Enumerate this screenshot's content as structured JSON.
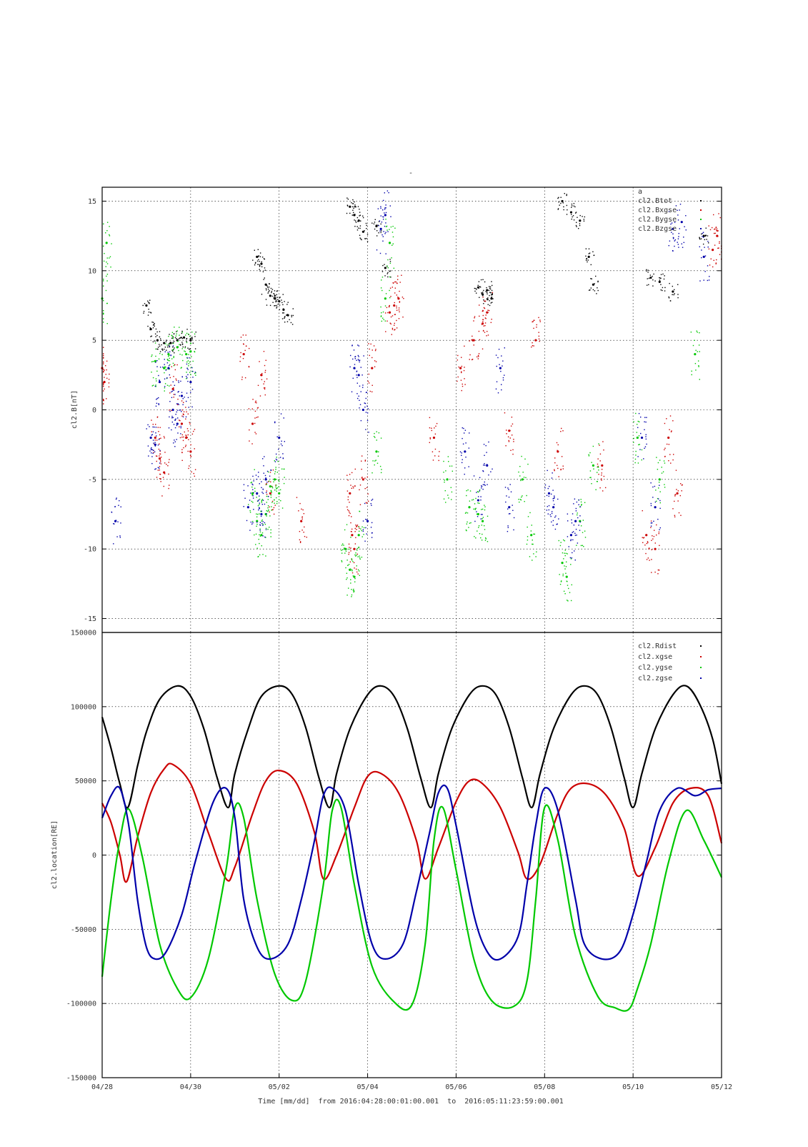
{
  "page_title": "-",
  "colors": {
    "total": "#000000",
    "x": "#cc0000",
    "y": "#00c800",
    "z": "#0000aa"
  },
  "chart_data": [
    {
      "type": "scatter",
      "title": "",
      "ylabel": "cl2.B[nT]",
      "xlabel": "",
      "xlim": [
        0,
        14
      ],
      "ylim": [
        -16,
        16
      ],
      "yticks": [
        15,
        10,
        5,
        0,
        -5,
        -10,
        -15
      ],
      "ytick_labels": [
        "15",
        "10",
        "5",
        "0",
        "-5",
        "-10",
        "-15"
      ],
      "grid": true,
      "legend_placement": "top-right",
      "legend": [
        "a",
        "cl2.Btot",
        "cl2.Bxgse",
        "cl2.Bygse",
        "cl2.Bzgse"
      ],
      "series": [
        {
          "name": "cl2.Btot",
          "color": "#000000",
          "points": [
            [
              1.0,
              7.5
            ],
            [
              1.1,
              5.8
            ],
            [
              1.25,
              5.0
            ],
            [
              1.4,
              4.8
            ],
            [
              1.55,
              4.8
            ],
            [
              1.7,
              5.0
            ],
            [
              1.85,
              5.2
            ],
            [
              2.0,
              5.0
            ],
            [
              3.5,
              11.0
            ],
            [
              3.6,
              10.5
            ],
            [
              3.7,
              9.0
            ],
            [
              3.8,
              8.2
            ],
            [
              3.9,
              8.0
            ],
            [
              4.0,
              7.8
            ],
            [
              4.1,
              7.2
            ],
            [
              4.2,
              6.8
            ],
            [
              5.6,
              14.6
            ],
            [
              5.7,
              14.0
            ],
            [
              5.8,
              13.6
            ],
            [
              5.9,
              12.8
            ],
            [
              6.2,
              13.2
            ],
            [
              6.4,
              10.2
            ],
            [
              8.5,
              8.8
            ],
            [
              8.6,
              8.3
            ],
            [
              8.7,
              8.6
            ],
            [
              8.8,
              8.0
            ],
            [
              10.4,
              15.0
            ],
            [
              10.6,
              14.2
            ],
            [
              10.8,
              13.6
            ],
            [
              11.0,
              11.0
            ],
            [
              11.1,
              9.0
            ],
            [
              12.4,
              9.5
            ],
            [
              12.6,
              9.2
            ],
            [
              12.9,
              8.5
            ],
            [
              13.6,
              12.5
            ]
          ]
        },
        {
          "name": "cl2.Bxgse",
          "color": "#cc0000",
          "points": [
            [
              0.0,
              3.0
            ],
            [
              0.05,
              2.0
            ],
            [
              1.2,
              -2.0
            ],
            [
              1.3,
              -3.5
            ],
            [
              1.4,
              -4.5
            ],
            [
              1.6,
              1.5
            ],
            [
              1.8,
              -1.0
            ],
            [
              1.9,
              -2.0
            ],
            [
              2.0,
              -3.0
            ],
            [
              3.2,
              4.0
            ],
            [
              3.4,
              -1.0
            ],
            [
              3.6,
              2.5
            ],
            [
              3.8,
              -6.0
            ],
            [
              4.5,
              -8.0
            ],
            [
              5.6,
              -6.0
            ],
            [
              5.65,
              -9.0
            ],
            [
              5.7,
              -10.0
            ],
            [
              5.9,
              -5.0
            ],
            [
              6.1,
              3.0
            ],
            [
              6.5,
              7.0
            ],
            [
              6.6,
              7.5
            ],
            [
              6.7,
              8.0
            ],
            [
              7.5,
              -2.0
            ],
            [
              8.1,
              3.0
            ],
            [
              8.4,
              5.0
            ],
            [
              8.6,
              6.2
            ],
            [
              8.7,
              7.0
            ],
            [
              9.2,
              -1.5
            ],
            [
              9.8,
              5.0
            ],
            [
              10.3,
              -3.0
            ],
            [
              11.3,
              -4.0
            ],
            [
              12.3,
              -9.0
            ],
            [
              12.5,
              -10.0
            ],
            [
              12.8,
              -2.0
            ],
            [
              13.0,
              -6.0
            ],
            [
              13.8,
              11.5
            ],
            [
              13.9,
              12.5
            ]
          ]
        },
        {
          "name": "cl2.Bygse",
          "color": "#00c800",
          "points": [
            [
              0.0,
              8.0
            ],
            [
              0.1,
              12.0
            ],
            [
              1.2,
              3.5
            ],
            [
              1.4,
              3.0
            ],
            [
              1.5,
              4.0
            ],
            [
              1.7,
              4.5
            ],
            [
              1.9,
              4.0
            ],
            [
              2.0,
              4.2
            ],
            [
              3.4,
              -6.0
            ],
            [
              3.5,
              -8.0
            ],
            [
              3.6,
              -9.0
            ],
            [
              3.7,
              -7.5
            ],
            [
              3.8,
              -5.5
            ],
            [
              3.9,
              -5.0
            ],
            [
              4.0,
              -6.0
            ],
            [
              5.5,
              -10.0
            ],
            [
              5.6,
              -11.5
            ],
            [
              5.7,
              -12.0
            ],
            [
              5.8,
              -9.0
            ],
            [
              6.2,
              -3.0
            ],
            [
              6.4,
              8.0
            ],
            [
              6.5,
              12.0
            ],
            [
              7.8,
              -5.0
            ],
            [
              8.3,
              -7.0
            ],
            [
              8.5,
              -7.5
            ],
            [
              8.6,
              -8.0
            ],
            [
              9.5,
              -5.0
            ],
            [
              9.7,
              -9.0
            ],
            [
              10.4,
              -11.0
            ],
            [
              10.5,
              -12.0
            ],
            [
              10.8,
              -8.0
            ],
            [
              11.1,
              -4.0
            ],
            [
              12.1,
              -2.0
            ],
            [
              12.6,
              -5.0
            ],
            [
              13.4,
              4.0
            ]
          ]
        },
        {
          "name": "cl2.Bzgse",
          "color": "#0000aa",
          "points": [
            [
              0.3,
              -8.0
            ],
            [
              1.1,
              -2.0
            ],
            [
              1.2,
              -2.5
            ],
            [
              1.3,
              2.0
            ],
            [
              1.5,
              3.0
            ],
            [
              1.6,
              0.0
            ],
            [
              1.7,
              -1.0
            ],
            [
              1.8,
              1.0
            ],
            [
              2.0,
              2.0
            ],
            [
              3.3,
              -7.0
            ],
            [
              3.5,
              -6.0
            ],
            [
              3.6,
              -7.5
            ],
            [
              3.7,
              -5.0
            ],
            [
              4.0,
              -2.0
            ],
            [
              5.7,
              3.0
            ],
            [
              5.8,
              2.5
            ],
            [
              5.9,
              0.0
            ],
            [
              6.0,
              -8.0
            ],
            [
              6.3,
              13.0
            ],
            [
              6.4,
              14.0
            ],
            [
              8.2,
              -3.0
            ],
            [
              8.5,
              -6.5
            ],
            [
              8.7,
              -4.0
            ],
            [
              9.0,
              3.0
            ],
            [
              9.2,
              -7.0
            ],
            [
              10.1,
              -6.0
            ],
            [
              10.2,
              -7.0
            ],
            [
              10.6,
              -9.0
            ],
            [
              10.7,
              -8.0
            ],
            [
              12.2,
              -2.0
            ],
            [
              12.5,
              -7.0
            ],
            [
              12.9,
              13.0
            ],
            [
              13.1,
              13.5
            ],
            [
              13.6,
              11.0
            ]
          ]
        }
      ]
    },
    {
      "type": "line",
      "title": "",
      "ylabel": "cl2.location[RE]",
      "xlabel": "Time [mm/dd]  from 2016:04:28:00:01:00.001  to  2016:05:11:23:59:00.001",
      "xlim": [
        0,
        14
      ],
      "xticks": [
        0,
        2,
        4,
        6,
        8,
        10,
        12,
        14
      ],
      "xtick_labels": [
        "04/28",
        "04/30",
        "05/02",
        "05/04",
        "05/06",
        "05/08",
        "05/10",
        "05/12"
      ],
      "ylim": [
        -150000,
        150000
      ],
      "yticks": [
        150000,
        100000,
        50000,
        0,
        -50000,
        -100000,
        -150000
      ],
      "ytick_labels": [
        "150000",
        "100000",
        "50000",
        "0",
        "-50000",
        "-100000",
        "-150000"
      ],
      "grid": true,
      "legend_placement": "top-right",
      "legend": [
        "cl2.Rdist",
        "cl2.xgse",
        "cl2.ygse",
        "cl2.zgse"
      ],
      "period_days": 2.283,
      "series": [
        {
          "name": "cl2.Rdist",
          "color": "#000000",
          "x": [
            0.0,
            0.2,
            0.4,
            0.58,
            0.8,
            1.0,
            1.3,
            1.7,
            2.0,
            2.3,
            2.6,
            2.85,
            3.0,
            3.3,
            3.6,
            4.0,
            4.3,
            4.6,
            4.9,
            5.14,
            5.3,
            5.6,
            6.0,
            6.3,
            6.6,
            6.9,
            7.2,
            7.43,
            7.6,
            7.9,
            8.3,
            8.6,
            8.9,
            9.2,
            9.5,
            9.71,
            9.9,
            10.2,
            10.6,
            10.9,
            11.2,
            11.5,
            11.8,
            12.0,
            12.2,
            12.5,
            12.9,
            13.2,
            13.5,
            13.8,
            14.0
          ],
          "values": [
            93000,
            72000,
            48000,
            32000,
            60000,
            83000,
            105000,
            114000,
            107000,
            85000,
            52000,
            32000,
            55000,
            85000,
            107000,
            114000,
            108000,
            86000,
            52000,
            32000,
            55000,
            85000,
            108000,
            114000,
            107000,
            85000,
            52000,
            32000,
            55000,
            85000,
            108000,
            114000,
            108000,
            86000,
            52000,
            32000,
            55000,
            85000,
            108000,
            114000,
            108000,
            86000,
            52000,
            32000,
            55000,
            85000,
            108000,
            114000,
            102000,
            78000,
            48000
          ]
        },
        {
          "name": "cl2.xgse",
          "color": "#cc0000",
          "x": [
            0.0,
            0.2,
            0.4,
            0.55,
            0.8,
            1.1,
            1.4,
            1.6,
            2.0,
            2.4,
            2.8,
            3.0,
            3.4,
            3.7,
            4.0,
            4.4,
            4.8,
            5.0,
            5.3,
            5.7,
            6.0,
            6.3,
            6.7,
            7.1,
            7.3,
            7.6,
            8.0,
            8.3,
            8.6,
            9.0,
            9.4,
            9.6,
            9.9,
            10.3,
            10.6,
            11.0,
            11.4,
            11.8,
            12.1,
            12.5,
            12.9,
            13.3,
            13.7,
            14.0
          ],
          "values": [
            35000,
            22000,
            0,
            -18000,
            12000,
            42000,
            58000,
            61000,
            48000,
            15000,
            -16000,
            -8000,
            28000,
            50000,
            57000,
            48000,
            15000,
            -16000,
            0,
            32000,
            53000,
            55000,
            42000,
            10000,
            -16000,
            5000,
            36000,
            50000,
            48000,
            32000,
            2000,
            -16000,
            -6000,
            28000,
            45000,
            48000,
            40000,
            18000,
            -14000,
            5000,
            35000,
            45000,
            40000,
            8000
          ]
        },
        {
          "name": "cl2.ygse",
          "color": "#00c800",
          "x": [
            0.0,
            0.2,
            0.4,
            0.6,
            0.9,
            1.3,
            1.7,
            2.0,
            2.4,
            2.8,
            3.0,
            3.2,
            3.5,
            3.9,
            4.3,
            4.6,
            5.0,
            5.2,
            5.4,
            5.7,
            6.1,
            6.6,
            7.0,
            7.3,
            7.5,
            7.7,
            8.0,
            8.4,
            8.8,
            9.3,
            9.6,
            9.8,
            10.0,
            10.3,
            10.7,
            11.2,
            11.6,
            11.9,
            12.1,
            12.4,
            12.8,
            13.2,
            13.6,
            14.0
          ],
          "values": [
            -82000,
            -30000,
            10000,
            31000,
            0,
            -60000,
            -90000,
            -96000,
            -70000,
            -10000,
            32000,
            25000,
            -30000,
            -80000,
            -98000,
            -85000,
            -20000,
            30000,
            32000,
            -20000,
            -75000,
            -99000,
            -101000,
            -60000,
            10000,
            32000,
            -10000,
            -70000,
            -98000,
            -102000,
            -85000,
            -30000,
            32000,
            10000,
            -55000,
            -95000,
            -103000,
            -104000,
            -90000,
            -60000,
            -5000,
            30000,
            10000,
            -15000
          ]
        },
        {
          "name": "cl2.zgse",
          "color": "#0000aa",
          "x": [
            0.0,
            0.2,
            0.4,
            0.6,
            0.8,
            1.0,
            1.2,
            1.45,
            1.8,
            2.1,
            2.5,
            2.8,
            3.0,
            3.2,
            3.5,
            3.8,
            4.2,
            4.5,
            4.8,
            5.0,
            5.2,
            5.5,
            5.8,
            6.1,
            6.4,
            6.8,
            7.1,
            7.4,
            7.6,
            7.8,
            8.0,
            8.4,
            8.7,
            9.0,
            9.4,
            9.6,
            9.8,
            10.0,
            10.3,
            10.7,
            10.9,
            11.3,
            11.7,
            12.0,
            12.3,
            12.6,
            13.0,
            13.4,
            13.7,
            14.0
          ],
          "values": [
            25000,
            40000,
            45000,
            20000,
            -30000,
            -62000,
            -70000,
            -65000,
            -40000,
            -5000,
            35000,
            45000,
            25000,
            -30000,
            -62000,
            -70000,
            -60000,
            -30000,
            10000,
            40000,
            45000,
            30000,
            -20000,
            -60000,
            -70000,
            -60000,
            -25000,
            15000,
            42000,
            45000,
            20000,
            -40000,
            -65000,
            -70000,
            -55000,
            -20000,
            20000,
            45000,
            30000,
            -30000,
            -60000,
            -70000,
            -65000,
            -40000,
            -5000,
            30000,
            45000,
            40000,
            44000,
            45000
          ]
        }
      ]
    }
  ]
}
